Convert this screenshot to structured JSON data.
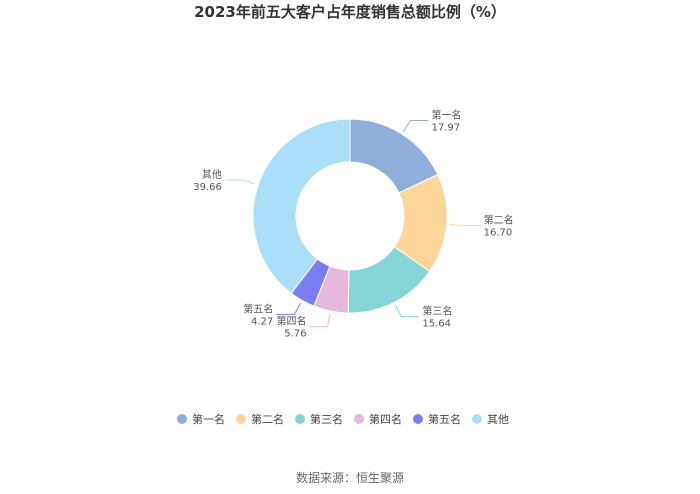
{
  "chart_data": {
    "type": "pie",
    "title": "2023年前五大客户占年度销售总额比例（%）",
    "categories": [
      "第一名",
      "第二名",
      "第三名",
      "第四名",
      "第五名",
      "其他"
    ],
    "values": [
      17.97,
      16.7,
      15.64,
      5.76,
      4.27,
      39.66
    ],
    "value_labels": [
      "17.97",
      "16.70",
      "15.64",
      "5.76",
      "4.27",
      "39.66"
    ],
    "colors": [
      "#8eaedb",
      "#fdd79a",
      "#86d6d8",
      "#e6b9dc",
      "#7b7ef0",
      "#a9dff9"
    ],
    "donut": true,
    "legend_position": "bottom"
  },
  "source": "数据来源：恒生聚源"
}
